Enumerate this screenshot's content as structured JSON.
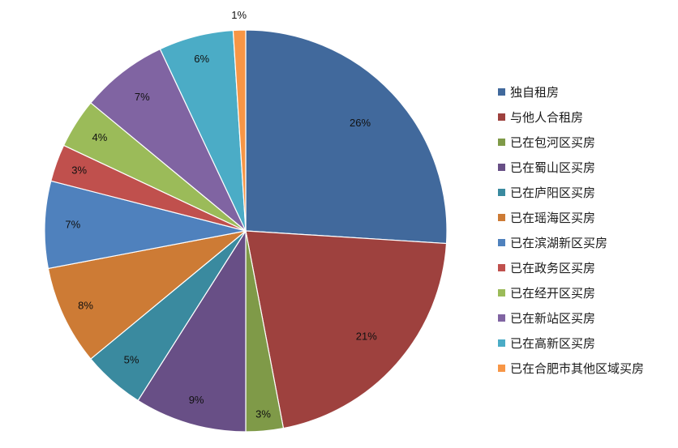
{
  "chart_data": {
    "type": "pie",
    "title": "",
    "legend_position": "right",
    "start_angle_deg": 0,
    "direction": "clockwise",
    "slices": [
      {
        "label": "独自租房",
        "value": 26,
        "display": "26%",
        "color": "#41699c"
      },
      {
        "label": "与他人合租房",
        "value": 21,
        "display": "21%",
        "color": "#9e413e"
      },
      {
        "label": "已在包河区买房",
        "value": 3,
        "display": "3%",
        "color": "#7f9a48"
      },
      {
        "label": "已在蜀山区买房",
        "value": 9,
        "display": "9%",
        "color": "#684f86"
      },
      {
        "label": "已在庐阳区买房",
        "value": 5,
        "display": "5%",
        "color": "#3a8a9f"
      },
      {
        "label": "已在瑶海区买房",
        "value": 8,
        "display": "8%",
        "color": "#cd7b35"
      },
      {
        "label": "已在滨湖新区买房",
        "value": 7,
        "display": "7%",
        "color": "#4f81bd"
      },
      {
        "label": "已在政务区买房",
        "value": 3,
        "display": "3%",
        "color": "#c0504d"
      },
      {
        "label": "已在经开区买房",
        "value": 4,
        "display": "4%",
        "color": "#9bbb59"
      },
      {
        "label": "已在新站区买房",
        "value": 7,
        "display": "7%",
        "color": "#8064a2"
      },
      {
        "label": "已在高新区买房",
        "value": 6,
        "display": "6%",
        "color": "#4bacc6"
      },
      {
        "label": "已在合肥市其他区域买房",
        "value": 1,
        "display": "1%",
        "color": "#f79646"
      }
    ]
  }
}
